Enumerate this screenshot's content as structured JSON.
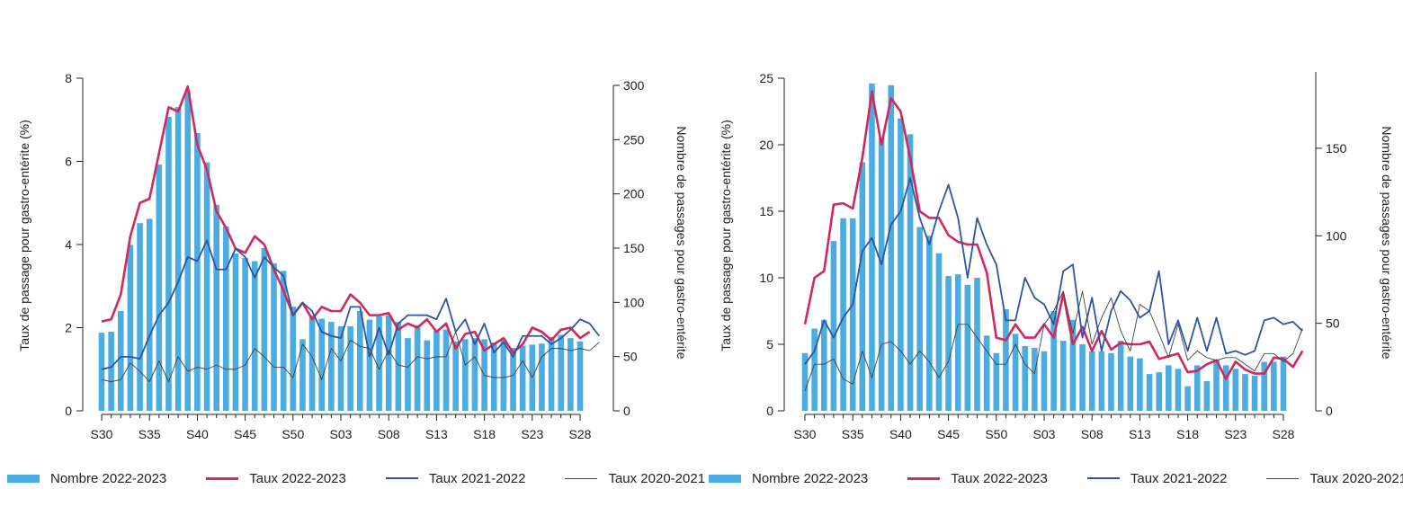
{
  "colors": {
    "bar": "#4aace0",
    "taux_2022": "#d02a5c",
    "taux_2021": "#2e55a0",
    "taux_2020": "#444444",
    "axis": "#222222"
  },
  "legend": {
    "items": [
      {
        "key": "bar",
        "label": "Nombre 2022-2023",
        "kind": "bar"
      },
      {
        "key": "taux_2022",
        "label": "Taux 2022-2023",
        "kind": "thick"
      },
      {
        "key": "taux_2021",
        "label": "Taux 2021-2022",
        "kind": "mid"
      },
      {
        "key": "taux_2020",
        "label": "Taux 2020-2021",
        "kind": "thin"
      }
    ]
  },
  "chart_data": [
    {
      "type": "bar",
      "ylabel": "Taux de passage pour gastro-entérite (%)",
      "y2label": "Nombre de passages pour gastro-entérite",
      "ylim": [
        0,
        8
      ],
      "y2lim": [
        0,
        300
      ],
      "yticks": [
        0,
        2,
        4,
        6,
        8
      ],
      "y2ticks": [
        0,
        50,
        100,
        150,
        200,
        250,
        300
      ],
      "xtick_labels": [
        "S30",
        "S35",
        "S40",
        "S45",
        "S50",
        "S03",
        "S08",
        "S13",
        "S18",
        "S23",
        "S28"
      ],
      "xtick_positions": [
        0,
        5,
        10,
        15,
        20,
        25,
        30,
        35,
        40,
        45,
        50
      ],
      "legend_position": "bottom",
      "bars": {
        "name": "Nombre 2022-2023",
        "axis": "y2",
        "values": [
          72,
          73,
          92,
          153,
          173,
          177,
          227,
          271,
          280,
          294,
          256,
          229,
          190,
          170,
          145,
          141,
          138,
          150,
          136,
          129,
          96,
          66,
          88,
          85,
          82,
          78,
          78,
          92,
          84,
          87,
          88,
          82,
          67,
          79,
          65,
          74,
          75,
          64,
          66,
          67,
          66,
          63,
          66,
          58,
          60,
          61,
          62,
          68,
          70,
          67,
          64
        ]
      },
      "series": [
        {
          "name": "Taux 2022-2023",
          "axis": "y",
          "values": [
            2.15,
            2.2,
            2.8,
            4.2,
            5.0,
            5.1,
            6.2,
            7.3,
            7.2,
            7.8,
            6.4,
            5.8,
            4.8,
            4.4,
            3.9,
            3.8,
            4.2,
            4.0,
            3.4,
            2.9,
            2.3,
            2.6,
            2.2,
            2.5,
            2.4,
            2.4,
            2.8,
            2.6,
            2.3,
            2.3,
            2.35,
            1.95,
            2.1,
            2.0,
            2.2,
            1.9,
            2.1,
            1.5,
            1.85,
            1.9,
            1.45,
            1.6,
            1.75,
            1.4,
            1.6,
            2.0,
            1.9,
            1.7,
            1.95,
            2.0,
            1.75,
            1.9
          ]
        },
        {
          "name": "Taux 2021-2022",
          "axis": "y",
          "values": [
            1.0,
            1.05,
            1.3,
            1.3,
            1.25,
            1.8,
            2.3,
            2.6,
            3.1,
            3.7,
            3.6,
            4.1,
            3.4,
            3.4,
            3.9,
            3.7,
            3.2,
            3.7,
            3.45,
            3.25,
            2.3,
            2.6,
            2.4,
            1.9,
            1.8,
            1.75,
            2.5,
            2.5,
            1.3,
            2.0,
            1.35,
            2.1,
            2.3,
            2.3,
            2.3,
            2.2,
            2.7,
            1.9,
            2.2,
            1.6,
            2.1,
            1.4,
            1.65,
            1.3,
            1.8,
            1.8,
            1.8,
            1.6,
            1.75,
            1.95,
            2.2,
            2.1,
            1.8
          ]
        },
        {
          "name": "Taux 2020-2021",
          "axis": "y",
          "values": [
            0.75,
            0.7,
            0.75,
            1.15,
            0.95,
            0.7,
            1.2,
            0.7,
            1.3,
            0.95,
            1.05,
            1.0,
            1.1,
            1.0,
            1.0,
            1.1,
            1.5,
            1.3,
            1.05,
            1.05,
            0.8,
            1.6,
            1.3,
            0.75,
            1.5,
            1.2,
            1.7,
            1.55,
            1.5,
            1.0,
            1.45,
            1.1,
            1.05,
            1.3,
            1.25,
            1.3,
            1.3,
            1.9,
            1.1,
            1.3,
            0.85,
            0.8,
            0.8,
            0.85,
            1.2,
            0.8,
            1.3,
            1.5,
            1.5,
            1.45,
            1.5,
            1.45,
            1.65
          ]
        }
      ]
    },
    {
      "type": "bar",
      "ylabel": "Taux de passage pour gastro-entérite (%)",
      "y2label": "Nombre de passages pour gastro-entérite",
      "ylim": [
        0,
        25
      ],
      "y2lim": [
        0,
        190
      ],
      "yticks": [
        0,
        5,
        10,
        15,
        20,
        25
      ],
      "y2ticks": [
        0,
        50,
        100,
        150
      ],
      "xtick_labels": [
        "S30",
        "S35",
        "S40",
        "S45",
        "S50",
        "S03",
        "S08",
        "S13",
        "S18",
        "S23",
        "S28"
      ],
      "xtick_positions": [
        0,
        5,
        10,
        15,
        20,
        25,
        30,
        35,
        40,
        45,
        50
      ],
      "legend_position": "bottom",
      "bars": {
        "name": "Nombre 2022-2023",
        "axis": "y2",
        "values": [
          33,
          47,
          52,
          97,
          110,
          110,
          142,
          187,
          156,
          186,
          167,
          158,
          105,
          100,
          90,
          77,
          78,
          72,
          76,
          43,
          33,
          58,
          44,
          37,
          36,
          34,
          57,
          40,
          52,
          38,
          34,
          34,
          33,
          40,
          31,
          30,
          21,
          22,
          26,
          24,
          14,
          26,
          17,
          29,
          26,
          24,
          21,
          20,
          28,
          28,
          31
        ]
      },
      "series": [
        {
          "name": "Taux 2022-2023",
          "axis": "y",
          "values": [
            6.5,
            10.0,
            10.5,
            15.5,
            15.6,
            15.2,
            19.0,
            24.0,
            20.0,
            23.5,
            22.5,
            19.0,
            15.0,
            14.5,
            14.5,
            13.2,
            12.7,
            12.5,
            12.5,
            10.4,
            5.5,
            5.3,
            6.5,
            5.5,
            5.5,
            6.5,
            5.5,
            8.8,
            5.0,
            6.3,
            4.5,
            6.0,
            4.6,
            5.1,
            5.0,
            5.0,
            5.2,
            3.9,
            4.1,
            4.3,
            2.9,
            3.0,
            3.5,
            3.8,
            2.4,
            3.7,
            3.1,
            2.8,
            2.8,
            4.0,
            3.9,
            3.3,
            4.5
          ]
        },
        {
          "name": "Taux 2021-2022",
          "axis": "y",
          "values": [
            3.5,
            4.5,
            6.8,
            5.5,
            7.0,
            8.0,
            12.0,
            13.0,
            11.0,
            14.0,
            15.0,
            17.5,
            14.5,
            12.5,
            15.0,
            17.0,
            14.5,
            10.0,
            14.5,
            12.5,
            11.0,
            6.8,
            6.8,
            10.0,
            8.5,
            8.0,
            6.5,
            10.5,
            11.0,
            5.5,
            8.5,
            4.5,
            7.5,
            9.0,
            8.3,
            7.0,
            7.5,
            10.5,
            5.0,
            6.8,
            4.5,
            7.0,
            4.5,
            7.0,
            4.3,
            4.5,
            4.2,
            4.5,
            6.8,
            7.0,
            6.5,
            6.7,
            6.0
          ]
        },
        {
          "name": "Taux 2020-2021",
          "axis": "y",
          "values": [
            1.5,
            3.5,
            3.5,
            3.9,
            2.4,
            2.0,
            4.5,
            2.5,
            5.0,
            5.2,
            4.5,
            3.5,
            4.5,
            3.7,
            2.5,
            3.7,
            6.5,
            6.5,
            5.5,
            4.5,
            3.5,
            3.5,
            5.0,
            3.5,
            2.8,
            6.5,
            7.5,
            9.0,
            5.8,
            9.0,
            5.0,
            7.0,
            8.5,
            6.0,
            4.5,
            8.0,
            7.5,
            5.8,
            4.0,
            6.5,
            3.8,
            4.5,
            4.0,
            3.8,
            4.0,
            4.0,
            3.5,
            3.0,
            4.3,
            4.3,
            3.7,
            4.3,
            6.2
          ]
        }
      ]
    }
  ]
}
